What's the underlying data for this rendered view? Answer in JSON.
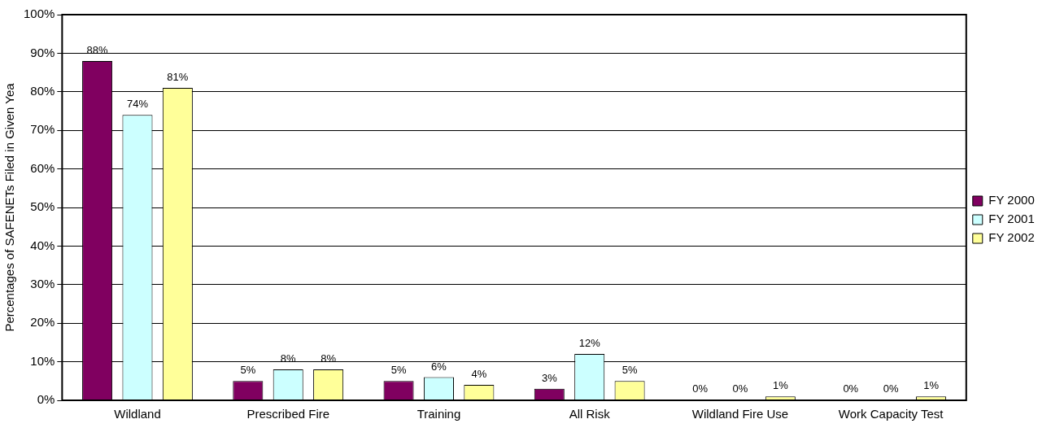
{
  "chart_data": {
    "type": "bar",
    "ylabel": "Percentages of SAFENETs Filed in Given Yea",
    "categories": [
      "Wildland",
      "Prescribed Fire",
      "Training",
      "All Risk",
      "Wildland Fire Use",
      "Work Capacity Test"
    ],
    "series": [
      {
        "name": "FY 2000",
        "color": "#800060",
        "values": [
          88,
          5,
          5,
          3,
          0,
          0
        ],
        "value_labels": [
          "88%",
          "5%",
          "5%",
          "3%",
          "0%",
          "0%"
        ]
      },
      {
        "name": "FY 2001",
        "color": "#ccffff",
        "values": [
          74,
          8,
          6,
          12,
          0,
          0
        ],
        "value_labels": [
          "74%",
          "8%",
          "6%",
          "12%",
          "0%",
          "0%"
        ]
      },
      {
        "name": "FY 2002",
        "color": "#ffff99",
        "values": [
          81,
          8,
          4,
          5,
          1,
          1
        ],
        "value_labels": [
          "81%",
          "8%",
          "4%",
          "5%",
          "1%",
          "1%"
        ]
      }
    ],
    "ylim": [
      0,
      100
    ],
    "yticks": [
      {
        "value": 0,
        "label": "0%"
      },
      {
        "value": 10,
        "label": "10%"
      },
      {
        "value": 20,
        "label": "20%"
      },
      {
        "value": 30,
        "label": "30%"
      },
      {
        "value": 40,
        "label": "40%"
      },
      {
        "value": 50,
        "label": "50%"
      },
      {
        "value": 60,
        "label": "60%"
      },
      {
        "value": 70,
        "label": "70%"
      },
      {
        "value": 80,
        "label": "80%"
      },
      {
        "value": 90,
        "label": "90%"
      },
      {
        "value": 100,
        "label": "100%"
      }
    ],
    "grid": "y",
    "legend": "right"
  }
}
